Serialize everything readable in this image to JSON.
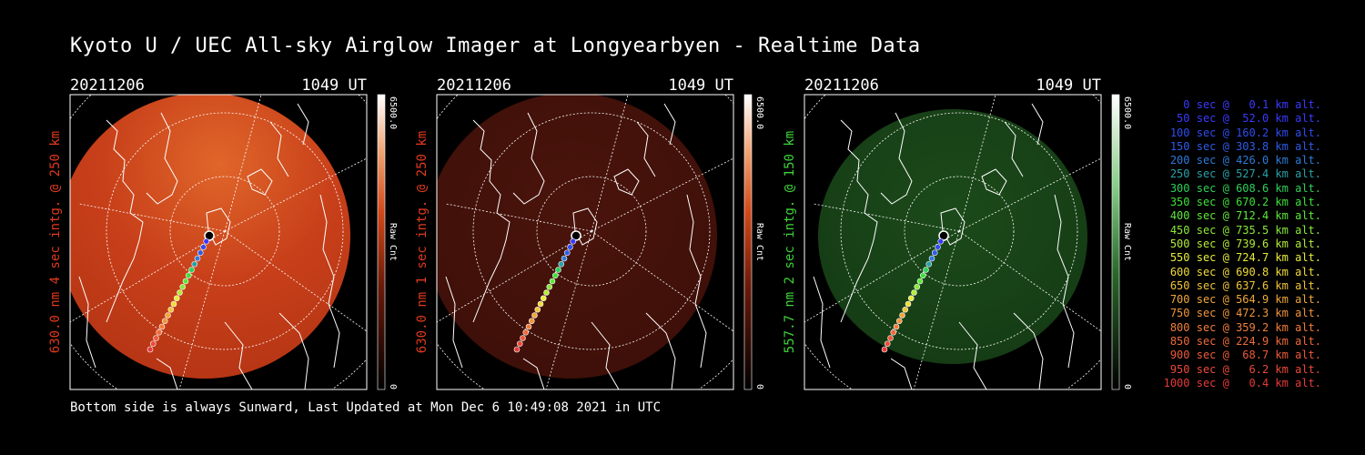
{
  "title": "Kyoto U / UEC All-sky Airglow Imager at Longyearbyen - Realtime Data",
  "footer": "Bottom side is always Sunward, Last Updated at Mon Dec  6 10:49:08 2021 in UTC",
  "panels": [
    {
      "date": "20211206",
      "time": "1049 UT",
      "side_label": "630.0 nm 4 sec intg. @ 250 km",
      "label_color": "#e03a1e",
      "colorbar_max": "6500.0",
      "colorbar_min": "0",
      "colorbar_unit": "Raw Cnt",
      "glow": "red-bright"
    },
    {
      "date": "20211206",
      "time": "1049 UT",
      "side_label": "630.0 nm 1 sec intg. @ 250 km",
      "label_color": "#e03a1e",
      "colorbar_max": "6500.0",
      "colorbar_min": "0",
      "colorbar_unit": "Raw Cnt",
      "glow": "red-dim"
    },
    {
      "date": "20211206",
      "time": "1049 UT",
      "side_label": "557.7 nm 2 sec intg. @ 150 km",
      "label_color": "#3fd43a",
      "colorbar_max": "6500.0",
      "colorbar_min": "0",
      "colorbar_unit": "Raw Cnt",
      "glow": "green"
    }
  ],
  "legend": [
    {
      "text": "0 sec @   0.1 km alt.",
      "color": "#3a3aff"
    },
    {
      "text": "50 sec @  52.0 km alt.",
      "color": "#3a3aff"
    },
    {
      "text": "100 sec @ 160.2 km alt.",
      "color": "#2f4cf0"
    },
    {
      "text": "150 sec @ 303.8 km alt.",
      "color": "#2d5ce8"
    },
    {
      "text": "200 sec @ 426.0 km alt.",
      "color": "#2f7ad8"
    },
    {
      "text": "250 sec @ 527.4 km alt.",
      "color": "#2aa0a8"
    },
    {
      "text": "300 sec @ 608.6 km alt.",
      "color": "#2ed05a"
    },
    {
      "text": "350 sec @ 670.2 km alt.",
      "color": "#3ee03a"
    },
    {
      "text": "400 sec @ 712.4 km alt.",
      "color": "#5ee83a"
    },
    {
      "text": "450 sec @ 735.5 km alt.",
      "color": "#8ae83a"
    },
    {
      "text": "500 sec @ 739.6 km alt.",
      "color": "#b4ec3a"
    },
    {
      "text": "550 sec @ 724.7 km alt.",
      "color": "#e6ec3a"
    },
    {
      "text": "600 sec @ 690.8 km alt.",
      "color": "#f0dc3a"
    },
    {
      "text": "650 sec @ 637.6 km alt.",
      "color": "#f0c43a"
    },
    {
      "text": "700 sec @ 564.9 km alt.",
      "color": "#f0a83a"
    },
    {
      "text": "750 sec @ 472.3 km alt.",
      "color": "#f0943a"
    },
    {
      "text": "800 sec @ 359.2 km alt.",
      "color": "#f07e3a"
    },
    {
      "text": "850 sec @ 224.9 km alt.",
      "color": "#ee6a3a"
    },
    {
      "text": "900 sec @  68.7 km alt.",
      "color": "#ec5a3a"
    },
    {
      "text": "950 sec @   6.2 km alt.",
      "color": "#ea4a3a"
    },
    {
      "text": "1000 sec @   0.4 km alt.",
      "color": "#e63a3a"
    }
  ]
}
